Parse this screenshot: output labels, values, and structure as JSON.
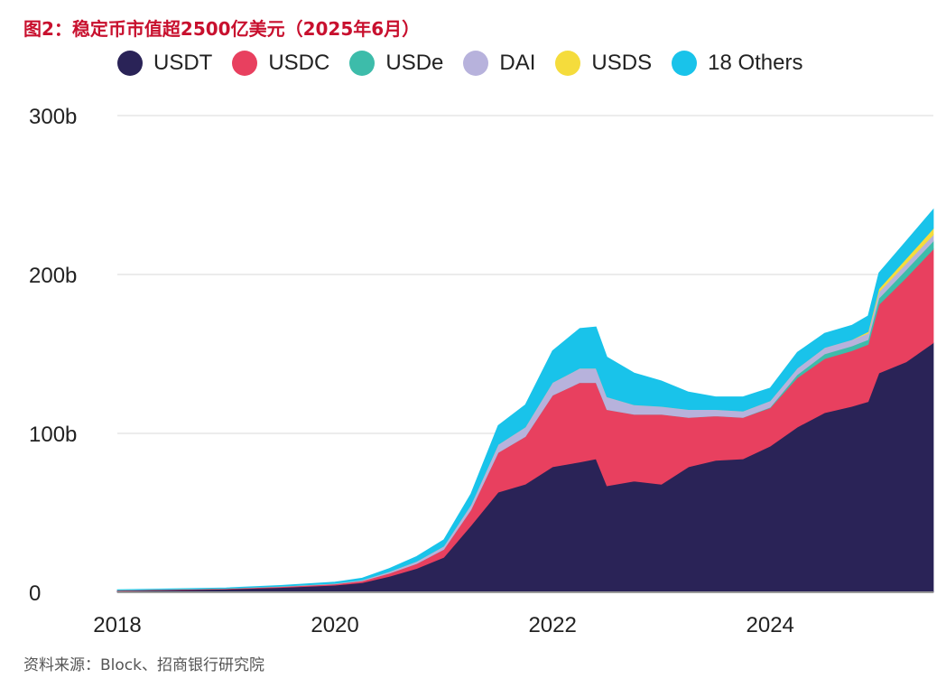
{
  "title": "图2：稳定币市值超2500亿美元（2025年6月）",
  "source": "资料来源：Block、招商银行研究院",
  "chart_data": {
    "type": "area",
    "stacked": true,
    "x_ticks": [
      {
        "label": "2018",
        "value": 2018
      },
      {
        "label": "2020",
        "value": 2020
      },
      {
        "label": "2022",
        "value": 2022
      },
      {
        "label": "2024",
        "value": 2024
      }
    ],
    "y_ticks": [
      {
        "label": "0",
        "value": 0
      },
      {
        "label": "100b",
        "value": 100
      },
      {
        "label": "200b",
        "value": 200
      },
      {
        "label": "300b",
        "value": 300
      }
    ],
    "xlim": [
      2018,
      2025.5
    ],
    "ylim": [
      0,
      300
    ],
    "grid": true,
    "legend_position": "top",
    "x": [
      2018.0,
      2019.0,
      2019.5,
      2020.0,
      2020.25,
      2020.5,
      2020.75,
      2021.0,
      2021.25,
      2021.5,
      2021.75,
      2022.0,
      2022.25,
      2022.4,
      2022.5,
      2022.75,
      2023.0,
      2023.25,
      2023.5,
      2023.75,
      2024.0,
      2024.25,
      2024.5,
      2024.75,
      2024.9,
      2025.0,
      2025.25,
      2025.5
    ],
    "series": [
      {
        "name": "USDT",
        "color": "#2a2357",
        "values": [
          1,
          2,
          3,
          4.5,
          6,
          10,
          15,
          22,
          42,
          63,
          68,
          79,
          82,
          84,
          67,
          70,
          68,
          79,
          83,
          84,
          92,
          104,
          113,
          117,
          120,
          138,
          145,
          157
        ]
      },
      {
        "name": "USDC",
        "color": "#e8405f",
        "values": [
          0.3,
          0.4,
          0.6,
          0.8,
          1.2,
          2,
          3,
          5,
          10,
          25,
          30,
          45,
          50,
          48,
          48,
          42,
          44,
          31,
          28,
          26,
          24,
          31,
          34,
          35,
          36,
          43,
          53,
          59
        ]
      },
      {
        "name": "USDe",
        "color": "#3dbcaa",
        "values": [
          0,
          0,
          0,
          0,
          0,
          0,
          0,
          0,
          0,
          0,
          0,
          0,
          0,
          0,
          0,
          0,
          0,
          0,
          0,
          0,
          0.5,
          2,
          3,
          3,
          3,
          4,
          5,
          5
        ]
      },
      {
        "name": "DAI",
        "color": "#b7b2dc",
        "values": [
          0.1,
          0.1,
          0.2,
          0.3,
          0.5,
          1,
          1.5,
          2,
          3,
          5,
          6,
          8,
          9,
          9,
          8,
          6,
          5,
          5,
          4,
          4,
          4,
          4,
          4,
          4,
          4,
          4,
          4,
          4
        ]
      },
      {
        "name": "USDS",
        "color": "#f5dc3c",
        "values": [
          0,
          0,
          0,
          0,
          0,
          0,
          0,
          0,
          0,
          0,
          0,
          0,
          0,
          0,
          0,
          0,
          0,
          0,
          0,
          0,
          0,
          0,
          0,
          0,
          1,
          2,
          3,
          4
        ]
      },
      {
        "name": "18 Others",
        "color": "#19c3ea",
        "values": [
          0.2,
          0.3,
          0.5,
          0.8,
          1.2,
          2,
          3,
          4,
          7,
          12,
          14,
          20,
          25,
          26,
          25,
          20,
          16,
          11,
          8,
          9,
          8,
          10,
          9,
          9,
          10,
          10,
          11,
          12
        ]
      }
    ]
  }
}
